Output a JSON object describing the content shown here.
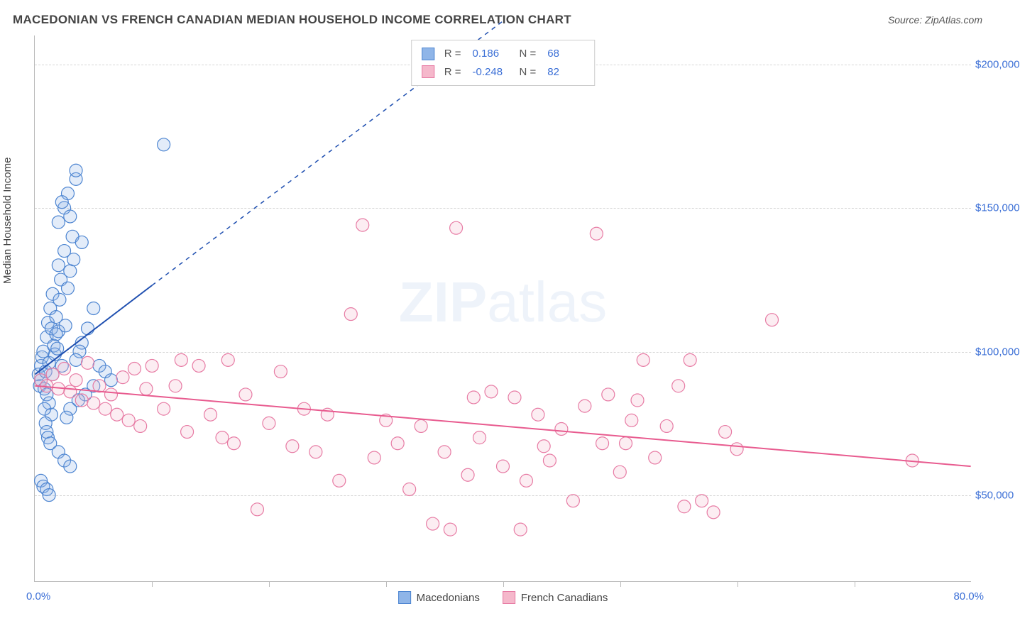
{
  "title": "MACEDONIAN VS FRENCH CANADIAN MEDIAN HOUSEHOLD INCOME CORRELATION CHART",
  "source": "Source: ZipAtlas.com",
  "watermark_zip": "ZIP",
  "watermark_atlas": "atlas",
  "ylabel": "Median Household Income",
  "chart": {
    "type": "scatter",
    "background_color": "#ffffff",
    "grid_color": "#d5d5d5",
    "axis_color": "#bbbbbb",
    "tick_label_color": "#3b6fd6",
    "xlim": [
      0,
      80
    ],
    "ylim": [
      20000,
      210000
    ],
    "x_tick_step": 10,
    "y_tick_step": 50000,
    "y_ticks": [
      50000,
      100000,
      150000,
      200000
    ],
    "y_tick_labels": [
      "$50,000",
      "$100,000",
      "$150,000",
      "$200,000"
    ],
    "x_min_label": "0.0%",
    "x_max_label": "80.0%",
    "marker_radius": 9,
    "marker_fill_opacity": 0.25,
    "trend_line_width": 2,
    "trend_dash_width": 1.5
  },
  "series": [
    {
      "key": "macedonians",
      "label": "Macedonians",
      "color_fill": "#8fb5e8",
      "color_stroke": "#4d85d1",
      "trend_color": "#1f4fb0",
      "R": "0.186",
      "N": "68",
      "trend": {
        "x1": 0,
        "y1": 92000,
        "x2": 10,
        "y2": 123000
      },
      "trend_dash": {
        "x1": 10,
        "y1": 123000,
        "x2": 40,
        "y2": 215000
      },
      "points": [
        [
          0.3,
          92000
        ],
        [
          0.4,
          88000
        ],
        [
          0.5,
          95000
        ],
        [
          0.5,
          90000
        ],
        [
          0.6,
          98000
        ],
        [
          0.7,
          100000
        ],
        [
          0.8,
          87000
        ],
        [
          0.9,
          93000
        ],
        [
          1.0,
          105000
        ],
        [
          1.1,
          110000
        ],
        [
          1.2,
          96000
        ],
        [
          1.3,
          115000
        ],
        [
          1.4,
          108000
        ],
        [
          1.5,
          120000
        ],
        [
          1.5,
          92000
        ],
        [
          1.6,
          102000
        ],
        [
          1.7,
          99000
        ],
        [
          1.8,
          112000
        ],
        [
          2.0,
          130000
        ],
        [
          2.0,
          107000
        ],
        [
          2.1,
          118000
        ],
        [
          2.2,
          125000
        ],
        [
          2.3,
          95000
        ],
        [
          2.5,
          135000
        ],
        [
          2.5,
          150000
        ],
        [
          2.6,
          109000
        ],
        [
          2.8,
          155000
        ],
        [
          3.0,
          147000
        ],
        [
          3.0,
          128000
        ],
        [
          3.2,
          140000
        ],
        [
          3.5,
          160000
        ],
        [
          3.5,
          163000
        ],
        [
          1.0,
          85000
        ],
        [
          1.2,
          82000
        ],
        [
          1.4,
          78000
        ],
        [
          0.8,
          80000
        ],
        [
          0.9,
          75000
        ],
        [
          1.0,
          72000
        ],
        [
          1.1,
          70000
        ],
        [
          1.3,
          68000
        ],
        [
          2.0,
          65000
        ],
        [
          2.5,
          62000
        ],
        [
          3.0,
          60000
        ],
        [
          0.5,
          55000
        ],
        [
          0.7,
          53000
        ],
        [
          1.0,
          52000
        ],
        [
          1.2,
          50000
        ],
        [
          5.0,
          115000
        ],
        [
          4.5,
          108000
        ],
        [
          4.0,
          103000
        ],
        [
          3.8,
          100000
        ],
        [
          3.5,
          97000
        ],
        [
          5.5,
          95000
        ],
        [
          6.0,
          93000
        ],
        [
          6.5,
          90000
        ],
        [
          2.0,
          145000
        ],
        [
          2.3,
          152000
        ],
        [
          4.0,
          138000
        ],
        [
          3.3,
          132000
        ],
        [
          2.8,
          122000
        ],
        [
          1.8,
          106000
        ],
        [
          1.9,
          101000
        ],
        [
          11.0,
          172000
        ],
        [
          5.0,
          88000
        ],
        [
          4.3,
          85000
        ],
        [
          3.7,
          83000
        ],
        [
          3.0,
          80000
        ],
        [
          2.7,
          77000
        ]
      ]
    },
    {
      "key": "french_canadians",
      "label": "French Canadians",
      "color_fill": "#f5b8cb",
      "color_stroke": "#e77ba4",
      "trend_color": "#e85b8f",
      "R": "-0.248",
      "N": "82",
      "trend": {
        "x1": 0,
        "y1": 88000,
        "x2": 80,
        "y2": 60000
      },
      "points": [
        [
          0.5,
          90000
        ],
        [
          1.0,
          88000
        ],
        [
          1.5,
          92000
        ],
        [
          2.0,
          87000
        ],
        [
          2.5,
          94000
        ],
        [
          3.0,
          86000
        ],
        [
          3.5,
          90000
        ],
        [
          4.0,
          83000
        ],
        [
          4.5,
          96000
        ],
        [
          5.0,
          82000
        ],
        [
          5.5,
          88000
        ],
        [
          6.0,
          80000
        ],
        [
          6.5,
          85000
        ],
        [
          7.0,
          78000
        ],
        [
          7.5,
          91000
        ],
        [
          8.0,
          76000
        ],
        [
          8.5,
          94000
        ],
        [
          9.0,
          74000
        ],
        [
          9.5,
          87000
        ],
        [
          10.0,
          95000
        ],
        [
          11.0,
          80000
        ],
        [
          12.0,
          88000
        ],
        [
          13.0,
          72000
        ],
        [
          14.0,
          95000
        ],
        [
          15.0,
          78000
        ],
        [
          16.0,
          70000
        ],
        [
          17.0,
          68000
        ],
        [
          18.0,
          85000
        ],
        [
          19.0,
          45000
        ],
        [
          20.0,
          75000
        ],
        [
          21.0,
          93000
        ],
        [
          22.0,
          67000
        ],
        [
          23.0,
          80000
        ],
        [
          24.0,
          65000
        ],
        [
          25.0,
          78000
        ],
        [
          26.0,
          55000
        ],
        [
          27.0,
          113000
        ],
        [
          28.0,
          144000
        ],
        [
          29.0,
          63000
        ],
        [
          30.0,
          76000
        ],
        [
          31.0,
          68000
        ],
        [
          32.0,
          52000
        ],
        [
          33.0,
          74000
        ],
        [
          34.0,
          40000
        ],
        [
          35.0,
          65000
        ],
        [
          35.5,
          38000
        ],
        [
          36.0,
          143000
        ],
        [
          37.0,
          57000
        ],
        [
          38.0,
          70000
        ],
        [
          39.0,
          86000
        ],
        [
          40.0,
          60000
        ],
        [
          41.0,
          84000
        ],
        [
          41.5,
          38000
        ],
        [
          42.0,
          55000
        ],
        [
          43.0,
          78000
        ],
        [
          44.0,
          62000
        ],
        [
          45.0,
          73000
        ],
        [
          46.0,
          48000
        ],
        [
          48.0,
          141000
        ],
        [
          48.5,
          68000
        ],
        [
          49.0,
          85000
        ],
        [
          50.0,
          58000
        ],
        [
          51.0,
          76000
        ],
        [
          52.0,
          97000
        ],
        [
          53.0,
          63000
        ],
        [
          54.0,
          74000
        ],
        [
          56.0,
          97000
        ],
        [
          57.0,
          48000
        ],
        [
          58.0,
          44000
        ],
        [
          59.0,
          72000
        ],
        [
          60.0,
          66000
        ],
        [
          63.0,
          111000
        ],
        [
          55.0,
          88000
        ],
        [
          51.5,
          83000
        ],
        [
          47.0,
          81000
        ],
        [
          50.5,
          68000
        ],
        [
          12.5,
          97000
        ],
        [
          16.5,
          97000
        ],
        [
          75.0,
          62000
        ],
        [
          55.5,
          46000
        ],
        [
          43.5,
          67000
        ],
        [
          37.5,
          84000
        ]
      ]
    }
  ],
  "stat_labels": {
    "R": "R =",
    "N": "N ="
  }
}
